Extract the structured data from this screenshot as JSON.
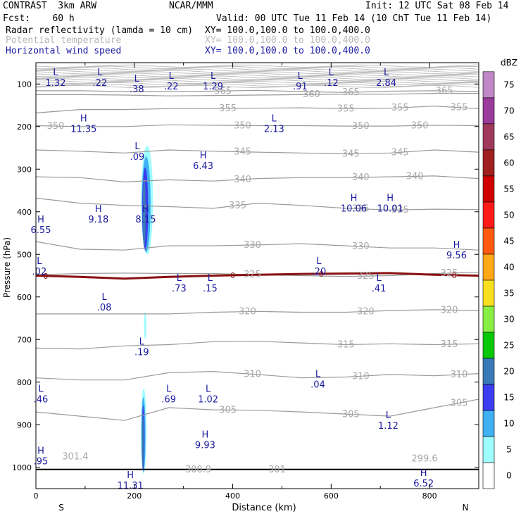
{
  "header": {
    "model": "CONTRAST  3km ARW",
    "org": "NCAR/MMM",
    "init": "Init: 12 UTC Sat 08 Feb 14",
    "fcst": "Fcst:    60 h",
    "valid": "Valid: 00 UTC Tue 11 Feb 14 (10 ChT Tue 11 Feb 14)",
    "field1_name": "Radar reflectivity (lamda = 10 cm)",
    "field1_xy": "XY= 100.0,100.0 to 100.0,400.0",
    "field2_name": "Potential temperature",
    "field2_xy": "XY= 100.0,100.0 to 100.0,400.0",
    "field3_name": "Horizontal wind speed",
    "field3_xy": "XY= 100.0,100.0 to 100.0,400.0"
  },
  "chart_data": {
    "type": "cross-section",
    "xlabel": "Distance (km)",
    "ylabel": "Pressure (hPa)",
    "xlim": [
      0,
      900
    ],
    "ylim": [
      1050,
      50
    ],
    "x_ticks": [
      0,
      200,
      400,
      600,
      800
    ],
    "y_ticks": [
      100,
      200,
      300,
      400,
      500,
      600,
      700,
      800,
      900,
      1000
    ],
    "x_end_labels": {
      "left": "S",
      "right": "N"
    },
    "colorbar": {
      "unit": "dBZ",
      "levels": [
        0,
        5,
        10,
        15,
        20,
        25,
        30,
        35,
        40,
        45,
        50,
        55,
        60,
        65,
        70,
        75
      ],
      "colors": [
        "#ffffff",
        "#9ffcff",
        "#3fb0f2",
        "#3c3cf0",
        "#3a7ab8",
        "#08c808",
        "#88ee44",
        "#f8e020",
        "#ffa818",
        "#ff5a10",
        "#ff1a1a",
        "#d00000",
        "#a02020",
        "#a03a5a",
        "#9a3a9a",
        "#c088c8"
      ]
    },
    "theta_contours": [
      {
        "label": "365",
        "p": [
          116,
          116,
          118,
          118,
          117,
          115,
          118,
          120,
          117,
          116,
          118
        ],
        "labels_at": [
          380,
          640,
          830
        ]
      },
      {
        "label": "360",
        "p": [
          125,
          125,
          126,
          128,
          127,
          126,
          125,
          124,
          124,
          122,
          122
        ],
        "labels_at": [
          560
        ]
      },
      {
        "label": "355",
        "p": [
          168,
          160,
          160,
          158,
          158,
          157,
          156,
          158,
          157,
          152,
          158
        ],
        "labels_at": [
          390,
          630,
          740,
          860
        ]
      },
      {
        "label": "350",
        "p": [
          198,
          200,
          200,
          196,
          197,
          198,
          198,
          199,
          199,
          197,
          198
        ],
        "labels_at": [
          40,
          420,
          660,
          780
        ]
      },
      {
        "label": "345",
        "p": [
          255,
          258,
          262,
          255,
          258,
          260,
          262,
          264,
          262,
          255,
          260
        ],
        "labels_at": [
          420,
          640,
          740
        ]
      },
      {
        "label": "340",
        "p": [
          318,
          320,
          330,
          325,
          328,
          322,
          320,
          320,
          318,
          316,
          322
        ],
        "labels_at": [
          420,
          660,
          770
        ]
      },
      {
        "label": "335",
        "p": [
          368,
          380,
          385,
          388,
          392,
          380,
          385,
          392,
          396,
          394,
          395
        ],
        "labels_at": [
          410,
          660,
          740
        ]
      },
      {
        "label": "330",
        "p": [
          470,
          488,
          490,
          480,
          480,
          478,
          475,
          480,
          485,
          485,
          490
        ],
        "labels_at": [
          440,
          660
        ]
      },
      {
        "label": "325",
        "p": [
          548,
          545,
          544,
          545,
          545,
          548,
          550,
          552,
          550,
          545,
          542
        ],
        "labels_at": [
          440,
          670,
          840
        ]
      },
      {
        "label": "320",
        "p": [
          640,
          640,
          640,
          640,
          636,
          634,
          636,
          636,
          632,
          630,
          632
        ],
        "labels_at": [
          430,
          670,
          840
        ]
      },
      {
        "label": "315",
        "p": [
          720,
          722,
          715,
          712,
          705,
          704,
          708,
          712,
          710,
          712,
          710
        ],
        "labels_at": [
          630,
          840
        ]
      },
      {
        "label": "310",
        "p": [
          790,
          795,
          795,
          778,
          775,
          782,
          790,
          788,
          782,
          785,
          780
        ],
        "labels_at": [
          440,
          660,
          860
        ]
      },
      {
        "label": "305",
        "p": [
          870,
          880,
          890,
          860,
          865,
          866,
          870,
          875,
          880,
          860,
          840
        ],
        "labels_at": [
          390,
          640,
          860
        ]
      }
    ],
    "freezing_level": {
      "label": "0",
      "p": [
        550,
        553,
        557,
        553,
        550,
        548,
        546,
        545,
        544,
        548,
        550
      ],
      "labels_at": [
        20,
        400,
        580,
        850
      ]
    },
    "surface_labels": [
      {
        "text": "301.4",
        "x": 80,
        "p": 975
      },
      {
        "text": "300.9",
        "x": 330,
        "p": 1005
      },
      {
        "text": "301",
        "x": 490,
        "p": 1005
      },
      {
        "text": "299.6",
        "x": 790,
        "p": 980
      }
    ],
    "wind_extrema": [
      {
        "type": "L",
        "x": 40,
        "p": 80,
        "value": "1.32"
      },
      {
        "type": "L",
        "x": 130,
        "p": 80,
        "value": ".22"
      },
      {
        "type": "L",
        "x": 205,
        "p": 95,
        "value": ".38"
      },
      {
        "type": "L",
        "x": 275,
        "p": 88,
        "value": ".22"
      },
      {
        "type": "L",
        "x": 360,
        "p": 88,
        "value": "1.29"
      },
      {
        "type": "L",
        "x": 537,
        "p": 88,
        "value": ".91"
      },
      {
        "type": "L",
        "x": 600,
        "p": 80,
        "value": ".12"
      },
      {
        "type": "L",
        "x": 712,
        "p": 80,
        "value": "2.84"
      },
      {
        "type": "H",
        "x": 97,
        "p": 188,
        "value": "11.35"
      },
      {
        "type": "L",
        "x": 484,
        "p": 188,
        "value": "2.13"
      },
      {
        "type": "L",
        "x": 206,
        "p": 253,
        "value": ".09"
      },
      {
        "type": "H",
        "x": 340,
        "p": 275,
        "value": "6.43"
      },
      {
        "type": "H",
        "x": 646,
        "p": 375,
        "value": "10.06"
      },
      {
        "type": "H",
        "x": 720,
        "p": 375,
        "value": "10.01"
      },
      {
        "type": "H",
        "x": 127,
        "p": 400,
        "value": "9.18"
      },
      {
        "type": "H",
        "x": 223,
        "p": 400,
        "value": "8.15"
      },
      {
        "type": "H",
        "x": 10,
        "p": 425,
        "value": "6.55"
      },
      {
        "type": "H",
        "x": 855,
        "p": 485,
        "value": "9.56"
      },
      {
        "type": "L",
        "x": 7,
        "p": 523,
        "value": ".02"
      },
      {
        "type": "L",
        "x": 575,
        "p": 523,
        "value": ".20"
      },
      {
        "type": "L",
        "x": 291,
        "p": 562,
        "value": ".73"
      },
      {
        "type": "L",
        "x": 354,
        "p": 562,
        "value": ".15"
      },
      {
        "type": "L",
        "x": 697,
        "p": 562,
        "value": ".41"
      },
      {
        "type": "L",
        "x": 139,
        "p": 607,
        "value": ".08"
      },
      {
        "type": "L",
        "x": 215,
        "p": 712,
        "value": ".19"
      },
      {
        "type": "L",
        "x": 573,
        "p": 788,
        "value": ".04"
      },
      {
        "type": "L",
        "x": 10,
        "p": 823,
        "value": ".46"
      },
      {
        "type": "L",
        "x": 270,
        "p": 823,
        "value": ".69"
      },
      {
        "type": "L",
        "x": 350,
        "p": 823,
        "value": "1.02"
      },
      {
        "type": "L",
        "x": 716,
        "p": 885,
        "value": "1.12"
      },
      {
        "type": "H",
        "x": 344,
        "p": 930,
        "value": "9.93"
      },
      {
        "type": "H",
        "x": 10,
        "p": 968,
        "value": ".95"
      },
      {
        "type": "H",
        "x": 192,
        "p": 1025,
        "value": "11.31"
      },
      {
        "type": "H",
        "x": 788,
        "p": 1020,
        "value": "6.52"
      }
    ],
    "reflectivity_cells": [
      {
        "x": 226,
        "p_top": 245,
        "p_bottom": 500,
        "width_km": 24,
        "peak_dbz": 20,
        "tilt_km": -8
      },
      {
        "x": 222,
        "p_top": 635,
        "p_bottom": 700,
        "width_km": 5,
        "peak_dbz": 5,
        "tilt_km": 0
      },
      {
        "x": 219,
        "p_top": 815,
        "p_bottom": 1015,
        "width_km": 11,
        "peak_dbz": 20,
        "tilt_km": -2
      }
    ]
  }
}
